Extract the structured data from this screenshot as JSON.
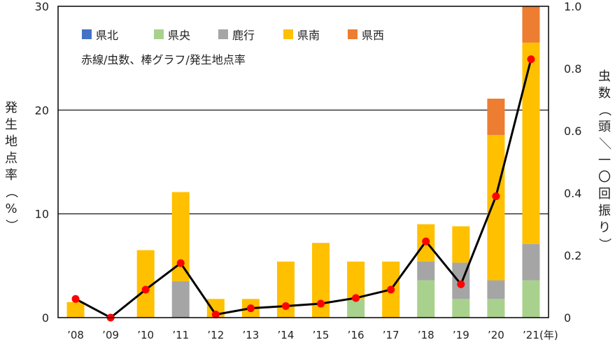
{
  "chart_data": {
    "type": "bar+line",
    "x_categories": [
      "’08",
      "’09",
      "’10",
      "’11",
      "’12",
      "’13",
      "’14",
      "’15",
      "’16",
      "’17",
      "’18",
      "’19",
      "’20",
      "’21"
    ],
    "x_unit": "(年)",
    "y_left": {
      "label": "発生地点率（%）",
      "min": 0,
      "max": 30,
      "ticks": [
        0,
        10,
        20,
        30
      ]
    },
    "y_right": {
      "label": "虫数（頭／一〇回振り）",
      "min": 0,
      "max": 1.0,
      "ticks": [
        "0",
        "0.2",
        "0.4",
        "0.6",
        "0.8",
        "1.0"
      ]
    },
    "legend": [
      {
        "key": "kenpoku",
        "label": "県北",
        "color": "#4472c4"
      },
      {
        "key": "kenou",
        "label": "県央",
        "color": "#a9d18e"
      },
      {
        "key": "rokko",
        "label": "鹿行",
        "color": "#a5a5a5"
      },
      {
        "key": "kennan",
        "label": "県南",
        "color": "#ffc000"
      },
      {
        "key": "kensei",
        "label": "県西",
        "color": "#ed7d31"
      }
    ],
    "note": "赤線/虫数、棒グラフ/発生地点率",
    "stacked_series": [
      {
        "key": "kenpoku",
        "values": [
          0,
          0,
          0,
          0,
          0,
          0,
          0,
          0,
          0,
          0,
          0,
          0,
          0,
          0
        ]
      },
      {
        "key": "kenou",
        "values": [
          0,
          0,
          0,
          0,
          0,
          0,
          0,
          0,
          1.8,
          0,
          3.6,
          1.8,
          1.8,
          3.6
        ]
      },
      {
        "key": "rokko",
        "values": [
          0,
          0,
          0,
          3.5,
          0,
          0,
          0,
          0,
          0,
          0,
          1.8,
          3.5,
          1.8,
          3.5
        ]
      },
      {
        "key": "kennan",
        "values": [
          1.5,
          0,
          6.5,
          8.6,
          1.8,
          1.8,
          5.4,
          7.2,
          3.6,
          5.4,
          3.6,
          3.5,
          14.0,
          19.4
        ]
      },
      {
        "key": "kensei",
        "values": [
          0,
          0,
          0,
          0,
          0,
          0,
          0,
          0,
          0,
          0,
          0,
          0,
          3.5,
          3.5
        ]
      }
    ],
    "line_series": {
      "label": "虫数",
      "color": "#000000",
      "marker_color": "#ff0000",
      "values": [
        0.06,
        0.0,
        0.09,
        0.175,
        0.01,
        0.03,
        0.037,
        0.045,
        0.063,
        0.09,
        0.245,
        0.107,
        0.39,
        0.83
      ]
    }
  }
}
